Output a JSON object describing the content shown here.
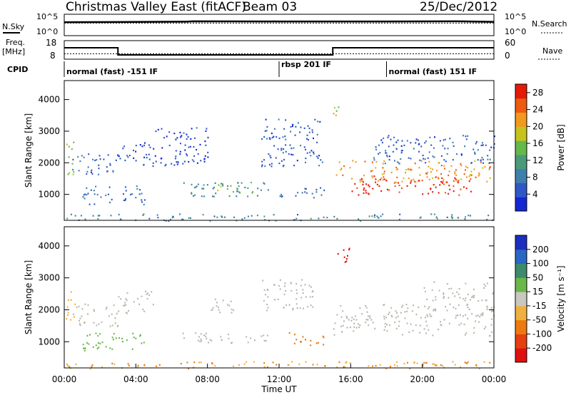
{
  "header": {
    "title": "Christmas Valley East (fitACF)",
    "beam": "Beam 03",
    "date": "25/Dec/2012"
  },
  "aux_panels": {
    "nsky_label": "N.Sky",
    "nsearch_label": "N.Search",
    "nsky_ticks": [
      "10^5",
      "10^0"
    ],
    "freq_label": "Freq.",
    "freq_unit": "[MHz]",
    "freq_ticks": [
      "18",
      "8"
    ],
    "nave_label": "Nave",
    "nave_ticks": [
      "60",
      "0"
    ],
    "cpid_label": "CPID"
  },
  "cpid_segments": [
    {
      "label": "normal (fast) -151 IF",
      "start_h": 0,
      "end_h": 12
    },
    {
      "label": "rbsp 201 IF",
      "start_h": 12,
      "end_h": 18
    },
    {
      "label": "normal (fast) 151 IF",
      "start_h": 18,
      "end_h": 24
    }
  ],
  "colors": {
    "power_scale": [
      "#1428d2",
      "#2f57c8",
      "#3f7fae",
      "#4a9a7a",
      "#65b84a",
      "#c6c21e",
      "#f09a1e",
      "#ee5a10",
      "#e41a08"
    ],
    "velocity_scale": [
      "#1c2ebe",
      "#2a66c4",
      "#3e8a6a",
      "#6ab84a",
      "#c8c8c0",
      "#f0b040",
      "#ec7a10",
      "#e44010",
      "#e01010"
    ],
    "ground_scatter": "#b8b8b0"
  },
  "chart_data": [
    {
      "type": "line",
      "panel": "N.Sky / N.Search",
      "x_unit": "hours UT",
      "y_scale": "log",
      "ylim": [
        1,
        100000
      ],
      "series": [
        {
          "name": "N.Sky",
          "x": [
            0,
            3,
            6.8,
            7.2,
            12,
            18,
            22,
            24
          ],
          "y": [
            1800,
            2000,
            2500,
            3000,
            2800,
            2800,
            3000,
            2200
          ]
        },
        {
          "name": "N.Search",
          "x": [
            0,
            24
          ],
          "y": [
            1000,
            1000
          ]
        }
      ]
    },
    {
      "type": "line",
      "panel": "Freq. / Nave",
      "x_unit": "hours UT",
      "ylim_freq": [
        8,
        18
      ],
      "ylim_nave": [
        0,
        60
      ],
      "series": [
        {
          "name": "Freq.",
          "x": [
            0,
            3,
            3,
            15,
            15,
            24
          ],
          "y": [
            15.5,
            15.5,
            10.5,
            10.5,
            15.5,
            15.5
          ]
        },
        {
          "name": "Nave",
          "x": [
            0,
            24
          ],
          "y": [
            18,
            18
          ]
        }
      ]
    },
    {
      "type": "heatmap",
      "panel": "Power",
      "ylabel": "Slant Range [km]",
      "y_ticks": [
        1000,
        2000,
        3000,
        4000
      ],
      "ylim": [
        180,
        4600
      ],
      "xlim": [
        0,
        24
      ],
      "colorbar": {
        "label": "Power [dB]",
        "ticks": [
          4,
          8,
          12,
          16,
          20,
          24,
          28
        ],
        "range": [
          0,
          30
        ]
      },
      "regions": [
        {
          "t0": 0.0,
          "t1": 0.5,
          "r0": 1600,
          "r1": 2700,
          "v": 16
        },
        {
          "t0": 0.3,
          "t1": 3.0,
          "r0": 1600,
          "r1": 2300,
          "v": 6
        },
        {
          "t0": 1.0,
          "t1": 4.5,
          "r0": 700,
          "r1": 1300,
          "v": 7
        },
        {
          "t0": 3.0,
          "t1": 5.0,
          "r0": 1900,
          "r1": 2700,
          "v": 5
        },
        {
          "t0": 5.0,
          "t1": 8.0,
          "r0": 1900,
          "r1": 3200,
          "v": 4
        },
        {
          "t0": 6.5,
          "t1": 11.5,
          "r0": 950,
          "r1": 1400,
          "v": 10
        },
        {
          "t0": 8.5,
          "t1": 10.5,
          "r0": 1000,
          "r1": 1400,
          "v": 15
        },
        {
          "t0": 11.0,
          "t1": 14.5,
          "r0": 1900,
          "r1": 3400,
          "v": 5
        },
        {
          "t0": 12.0,
          "t1": 14.5,
          "r0": 900,
          "r1": 1300,
          "v": 7
        },
        {
          "t0": 15.0,
          "t1": 15.5,
          "r0": 3500,
          "r1": 4000,
          "v": 18
        },
        {
          "t0": 15.0,
          "t1": 24.0,
          "r0": 1400,
          "r1": 2100,
          "v": 22
        },
        {
          "t0": 16.0,
          "t1": 23.0,
          "r0": 1000,
          "r1": 1600,
          "v": 28
        },
        {
          "t0": 17.0,
          "t1": 24.0,
          "r0": 2000,
          "r1": 2900,
          "v": 6
        },
        {
          "t0": 0.0,
          "t1": 24.0,
          "r0": 180,
          "r1": 400,
          "v": 9
        }
      ]
    },
    {
      "type": "heatmap",
      "panel": "Velocity",
      "xlabel": "Time UT",
      "ylabel": "Slant Range [km]",
      "x_ticks": [
        "00:00",
        "04:00",
        "08:00",
        "12:00",
        "16:00",
        "20:00",
        "00:00"
      ],
      "y_ticks": [
        1000,
        2000,
        3000,
        4000
      ],
      "ylim": [
        180,
        4600
      ],
      "xlim": [
        0,
        24
      ],
      "colorbar": {
        "label": "Velocity [m s⁻¹]",
        "ticks": [
          200,
          100,
          50,
          15,
          -15,
          -50,
          -100,
          -200
        ],
        "range": [
          -250,
          250
        ]
      },
      "regions": [
        {
          "t0": 0.0,
          "t1": 0.6,
          "r0": 1700,
          "r1": 2600,
          "v": -40
        },
        {
          "t0": 0.4,
          "t1": 3.0,
          "r0": 1500,
          "r1": 2200,
          "v": 0
        },
        {
          "t0": 1.0,
          "t1": 4.5,
          "r0": 700,
          "r1": 1300,
          "v": 40
        },
        {
          "t0": 3.0,
          "t1": 5.0,
          "r0": 1900,
          "r1": 2600,
          "v": 0
        },
        {
          "t0": 6.5,
          "t1": 11.5,
          "r0": 950,
          "r1": 1300,
          "v": 0
        },
        {
          "t0": 8.0,
          "t1": 9.5,
          "r0": 1900,
          "r1": 2500,
          "v": 0
        },
        {
          "t0": 11.0,
          "t1": 14.0,
          "r0": 2000,
          "r1": 3000,
          "v": 0
        },
        {
          "t0": 12.5,
          "t1": 14.5,
          "r0": 900,
          "r1": 1300,
          "v": -60
        },
        {
          "t0": 15.2,
          "t1": 16.0,
          "r0": 3400,
          "r1": 4000,
          "v": -220
        },
        {
          "t0": 15.0,
          "t1": 24.0,
          "r0": 1200,
          "r1": 2200,
          "v": 0
        },
        {
          "t0": 20.0,
          "t1": 24.0,
          "r0": 2300,
          "r1": 2900,
          "v": 0
        },
        {
          "t0": 0.0,
          "t1": 24.0,
          "r0": 180,
          "r1": 400,
          "v": -50
        }
      ]
    }
  ]
}
